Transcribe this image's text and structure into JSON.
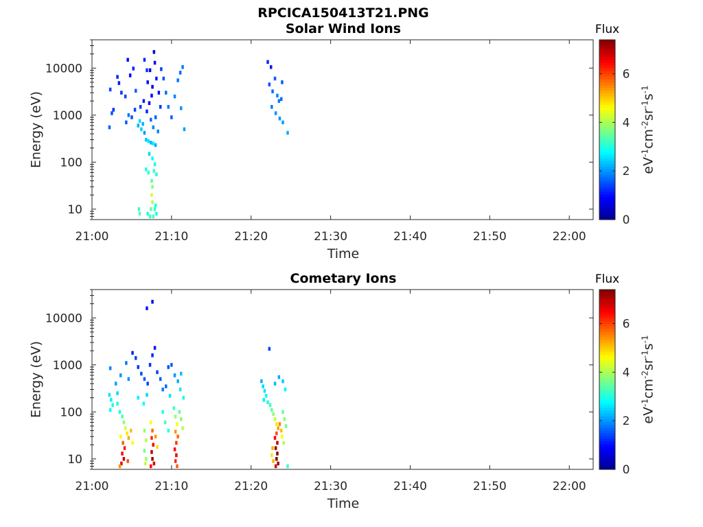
{
  "figure_title": "RPCICA150413T21.PNG",
  "colors": {
    "colormap": [
      "#00008f",
      "#0000ff",
      "#0080ff",
      "#00ffff",
      "#80ff80",
      "#ffff00",
      "#ff8000",
      "#ff0000",
      "#800000"
    ],
    "axis": "#262626",
    "background": "#ffffff"
  },
  "chart_data": [
    {
      "type": "heatmap",
      "title": "Solar Wind Ions",
      "xlabel": "Time",
      "ylabel": "Energy (eV)",
      "x_ticks": [
        "21:00",
        "21:10",
        "21:20",
        "21:30",
        "21:40",
        "21:50",
        "22:00"
      ],
      "x_tick_minutes": [
        0,
        10,
        20,
        30,
        40,
        50,
        60
      ],
      "xlim_minutes": [
        0,
        63
      ],
      "y_scale": "log",
      "ylim": [
        6,
        40000
      ],
      "y_ticks": [
        "10",
        "100",
        "1000",
        "10000"
      ],
      "y_tick_values": [
        10,
        100,
        1000,
        10000
      ],
      "colorbar": {
        "title": "Flux",
        "label": "eV-1cm-2sr-1s-1",
        "range": [
          0,
          7.4
        ],
        "ticks": [
          "0",
          "2",
          "4",
          "6"
        ],
        "tick_values": [
          0,
          2,
          4,
          6
        ]
      },
      "grid": false,
      "cells": [
        [
          2.2,
          550,
          1.6
        ],
        [
          2.5,
          1100,
          1.5
        ],
        [
          2.3,
          3500,
          1.4
        ],
        [
          2.7,
          1300,
          1.3
        ],
        [
          3.2,
          6500,
          1.2
        ],
        [
          3.4,
          4800,
          1.1
        ],
        [
          3.7,
          3000,
          1.3
        ],
        [
          4.2,
          2500,
          1.4
        ],
        [
          4.5,
          15000,
          1.0
        ],
        [
          4.8,
          7000,
          0.9
        ],
        [
          5.2,
          9800,
          1.2
        ],
        [
          5.5,
          3300,
          1.6
        ],
        [
          4.3,
          700,
          1.6
        ],
        [
          4.6,
          1000,
          1.8
        ],
        [
          5.0,
          900,
          1.5
        ],
        [
          5.4,
          1300,
          1.4
        ],
        [
          5.8,
          600,
          2.2
        ],
        [
          6.0,
          750,
          2.5
        ],
        [
          6.2,
          500,
          2.4
        ],
        [
          6.4,
          650,
          2.2
        ],
        [
          6.6,
          420,
          2.0
        ],
        [
          6.1,
          1500,
          1.3
        ],
        [
          6.5,
          2000,
          1.1
        ],
        [
          6.9,
          1200,
          1.2
        ],
        [
          7.2,
          1800,
          0.8
        ],
        [
          7.5,
          2600,
          0.9
        ],
        [
          7.0,
          5000,
          1.0
        ],
        [
          7.3,
          9000,
          0.8
        ],
        [
          7.6,
          4000,
          0.7
        ],
        [
          7.8,
          22000,
          0.6
        ],
        [
          8.1,
          6000,
          1.1
        ],
        [
          8.4,
          3000,
          1.0
        ],
        [
          8.6,
          1500,
          1.3
        ],
        [
          7.4,
          800,
          1.7
        ],
        [
          7.7,
          550,
          1.9
        ],
        [
          8.0,
          900,
          1.6
        ],
        [
          8.3,
          450,
          1.9
        ],
        [
          6.6,
          15000,
          1.2
        ],
        [
          6.9,
          9000,
          1.3
        ],
        [
          7.9,
          13000,
          0.9
        ],
        [
          8.7,
          9500,
          1.4
        ],
        [
          9.0,
          6000,
          1.5
        ],
        [
          9.3,
          3000,
          1.7
        ],
        [
          9.6,
          1500,
          1.8
        ],
        [
          10.0,
          900,
          1.6
        ],
        [
          10.4,
          2500,
          1.9
        ],
        [
          10.8,
          5500,
          1.8
        ],
        [
          11.1,
          8000,
          1.7
        ],
        [
          11.4,
          10500,
          1.8
        ],
        [
          11.2,
          1400,
          2.0
        ],
        [
          11.6,
          500,
          2.1
        ],
        [
          6.8,
          300,
          2.4
        ],
        [
          7.1,
          280,
          2.6
        ],
        [
          7.4,
          260,
          2.3
        ],
        [
          7.7,
          250,
          2.7
        ],
        [
          8.0,
          230,
          2.2
        ],
        [
          7.2,
          150,
          2.5
        ],
        [
          7.6,
          120,
          2.8
        ],
        [
          7.9,
          90,
          2.9
        ],
        [
          6.8,
          70,
          3.0
        ],
        [
          7.1,
          60,
          3.1
        ],
        [
          7.8,
          65,
          3.2
        ],
        [
          8.1,
          55,
          3.0
        ],
        [
          7.5,
          40,
          3.4
        ],
        [
          7.6,
          30,
          3.8
        ],
        [
          7.5,
          20,
          4.3
        ],
        [
          7.6,
          14,
          4.0
        ],
        [
          7.4,
          10,
          3.5
        ],
        [
          5.9,
          10,
          3.2
        ],
        [
          6.0,
          8,
          3.4
        ],
        [
          7.0,
          8,
          3.0
        ],
        [
          7.9,
          10,
          3.1
        ],
        [
          8.1,
          8,
          2.9
        ],
        [
          8.0,
          12,
          3.0
        ],
        [
          7.3,
          7,
          3.2
        ],
        [
          7.7,
          7,
          3.3
        ],
        [
          22.1,
          13500,
          1.2
        ],
        [
          22.5,
          10500,
          1.1
        ],
        [
          22.3,
          4500,
          1.5
        ],
        [
          22.7,
          3200,
          1.7
        ],
        [
          23.0,
          6000,
          1.6
        ],
        [
          23.3,
          2600,
          1.9
        ],
        [
          22.6,
          1500,
          1.8
        ],
        [
          23.1,
          1100,
          2.0
        ],
        [
          23.5,
          2000,
          1.8
        ],
        [
          23.8,
          2200,
          1.7
        ],
        [
          23.9,
          5000,
          1.6
        ],
        [
          23.6,
          850,
          2.0
        ],
        [
          24.0,
          700,
          2.1
        ],
        [
          24.6,
          420,
          2.2
        ]
      ]
    },
    {
      "type": "heatmap",
      "title": "Cometary Ions",
      "xlabel": "Time",
      "ylabel": "Energy (eV)",
      "x_ticks": [
        "21:00",
        "21:10",
        "21:20",
        "21:30",
        "21:40",
        "21:50",
        "22:00"
      ],
      "x_tick_minutes": [
        0,
        10,
        20,
        30,
        40,
        50,
        60
      ],
      "xlim_minutes": [
        0,
        63
      ],
      "y_scale": "log",
      "ylim": [
        6,
        40000
      ],
      "y_ticks": [
        "10",
        "100",
        "1000",
        "10000"
      ],
      "y_tick_values": [
        10,
        100,
        1000,
        10000
      ],
      "colorbar": {
        "title": "Flux",
        "label": "eV-1cm-2sr-1s-1",
        "range": [
          0,
          7.4
        ],
        "ticks": [
          "0",
          "2",
          "4",
          "6"
        ],
        "tick_values": [
          0,
          2,
          4,
          6
        ]
      },
      "grid": false,
      "cells": [
        [
          7.6,
          22000,
          1.0
        ],
        [
          6.9,
          16000,
          1.1
        ],
        [
          2.3,
          850,
          1.9
        ],
        [
          2.2,
          230,
          2.6
        ],
        [
          2.4,
          180,
          2.7
        ],
        [
          2.6,
          140,
          2.9
        ],
        [
          2.3,
          110,
          2.8
        ],
        [
          3.0,
          400,
          2.1
        ],
        [
          3.2,
          250,
          2.5
        ],
        [
          3.6,
          600,
          2.0
        ],
        [
          4.3,
          1100,
          1.8
        ],
        [
          4.6,
          500,
          2.0
        ],
        [
          5.1,
          1800,
          1.2
        ],
        [
          5.5,
          1400,
          1.4
        ],
        [
          5.8,
          900,
          1.3
        ],
        [
          6.2,
          650,
          1.5
        ],
        [
          6.6,
          500,
          1.6
        ],
        [
          7.0,
          400,
          1.4
        ],
        [
          7.3,
          1000,
          1.3
        ],
        [
          7.6,
          1600,
          1.2
        ],
        [
          7.9,
          2300,
          1.1
        ],
        [
          8.2,
          700,
          1.4
        ],
        [
          8.6,
          500,
          1.6
        ],
        [
          8.9,
          300,
          1.8
        ],
        [
          9.3,
          350,
          1.7
        ],
        [
          9.6,
          900,
          1.5
        ],
        [
          10.0,
          1000,
          1.6
        ],
        [
          10.4,
          600,
          2.0
        ],
        [
          10.8,
          450,
          2.2
        ],
        [
          11.2,
          650,
          2.3
        ],
        [
          3.2,
          150,
          2.9
        ],
        [
          3.5,
          100,
          3.0
        ],
        [
          3.8,
          80,
          3.3
        ],
        [
          4.0,
          60,
          3.8
        ],
        [
          4.2,
          45,
          4.3
        ],
        [
          4.4,
          35,
          4.8
        ],
        [
          4.6,
          28,
          5.3
        ],
        [
          3.9,
          22,
          5.8
        ],
        [
          4.1,
          17,
          6.3
        ],
        [
          3.8,
          13,
          6.5
        ],
        [
          4.0,
          10,
          6.9
        ],
        [
          3.7,
          8,
          6.6
        ],
        [
          3.5,
          7,
          5.4
        ],
        [
          4.5,
          9,
          5.9
        ],
        [
          4.9,
          40,
          5.1
        ],
        [
          5.1,
          22,
          4.6
        ],
        [
          3.6,
          30,
          4.5
        ],
        [
          6.6,
          40,
          3.8
        ],
        [
          6.8,
          25,
          4.0
        ],
        [
          6.6,
          15,
          3.6
        ],
        [
          6.8,
          10,
          3.9
        ],
        [
          6.7,
          8,
          4.2
        ],
        [
          7.4,
          60,
          4.6
        ],
        [
          7.6,
          40,
          5.7
        ],
        [
          7.5,
          28,
          6.2
        ],
        [
          7.7,
          20,
          6.6
        ],
        [
          7.5,
          14,
          7.0
        ],
        [
          7.6,
          10,
          7.2
        ],
        [
          7.8,
          8,
          6.8
        ],
        [
          7.4,
          7,
          6.4
        ],
        [
          8.0,
          30,
          5.4
        ],
        [
          8.2,
          18,
          4.9
        ],
        [
          8.9,
          100,
          3.0
        ],
        [
          9.2,
          60,
          3.3
        ],
        [
          9.6,
          40,
          3.1
        ],
        [
          10.3,
          120,
          3.2
        ],
        [
          10.5,
          80,
          3.9
        ],
        [
          10.7,
          55,
          4.6
        ],
        [
          10.5,
          38,
          5.4
        ],
        [
          10.8,
          30,
          5.7
        ],
        [
          10.6,
          22,
          6.1
        ],
        [
          10.4,
          16,
          6.5
        ],
        [
          10.6,
          12,
          6.6
        ],
        [
          10.5,
          9,
          6.2
        ],
        [
          10.7,
          7,
          5.8
        ],
        [
          11.0,
          100,
          3.5
        ],
        [
          11.2,
          70,
          3.7
        ],
        [
          11.4,
          45,
          4.1
        ],
        [
          11.1,
          300,
          2.6
        ],
        [
          11.5,
          200,
          2.9
        ],
        [
          6.5,
          150,
          2.8
        ],
        [
          6.9,
          230,
          2.5
        ],
        [
          9.8,
          220,
          2.6
        ],
        [
          5.8,
          200,
          2.7
        ],
        [
          22.3,
          2200,
          1.4
        ],
        [
          21.3,
          450,
          2.2
        ],
        [
          21.5,
          350,
          2.5
        ],
        [
          21.7,
          280,
          2.6
        ],
        [
          21.9,
          220,
          2.8
        ],
        [
          21.6,
          180,
          2.7
        ],
        [
          22.1,
          160,
          3.0
        ],
        [
          22.4,
          140,
          3.2
        ],
        [
          22.6,
          110,
          3.5
        ],
        [
          22.8,
          90,
          3.8
        ],
        [
          23.0,
          70,
          4.2
        ],
        [
          23.2,
          55,
          4.8
        ],
        [
          23.4,
          45,
          5.3
        ],
        [
          23.2,
          35,
          5.9
        ],
        [
          23.0,
          28,
          6.5
        ],
        [
          23.3,
          22,
          6.9
        ],
        [
          23.1,
          17,
          7.2
        ],
        [
          23.3,
          13,
          7.3
        ],
        [
          23.2,
          10,
          7.4
        ],
        [
          23.4,
          8,
          7.2
        ],
        [
          23.1,
          7,
          6.8
        ],
        [
          23.6,
          55,
          5.5
        ],
        [
          23.8,
          40,
          5.1
        ],
        [
          23.9,
          30,
          4.6
        ],
        [
          24.1,
          22,
          4.1
        ],
        [
          22.7,
          17,
          5.2
        ],
        [
          22.6,
          12,
          4.8
        ],
        [
          22.8,
          9,
          5.2
        ],
        [
          24.0,
          100,
          3.5
        ],
        [
          24.2,
          70,
          3.8
        ],
        [
          24.4,
          50,
          3.6
        ],
        [
          24.3,
          300,
          2.7
        ],
        [
          24.0,
          450,
          2.4
        ],
        [
          23.5,
          550,
          2.2
        ],
        [
          23.0,
          400,
          2.3
        ],
        [
          24.6,
          7,
          3.2
        ]
      ]
    }
  ]
}
